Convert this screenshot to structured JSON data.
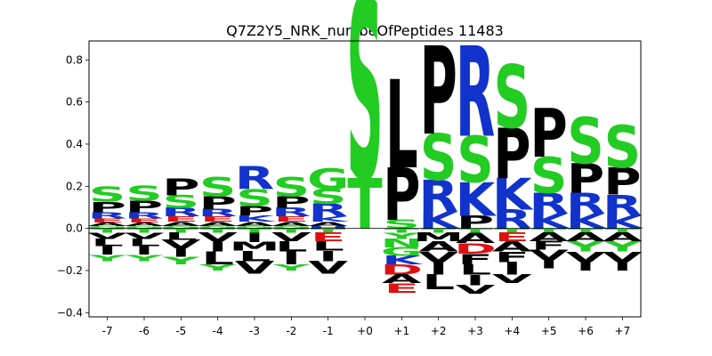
{
  "chart_data": {
    "type": "sequence-logo",
    "title": "Q7Z2Y5_NRK_numbeOfPeptides 11483",
    "xlabel": "",
    "ylabel": "",
    "ylim": [
      -0.42,
      0.89
    ],
    "yticks": [
      -0.4,
      -0.2,
      0.0,
      0.2,
      0.4,
      0.6,
      0.8
    ],
    "ytick_labels": [
      "−0.4",
      "−0.2",
      "0.0",
      "0.2",
      "0.4",
      "0.6",
      "0.8"
    ],
    "positions": [
      "-7",
      "-6",
      "-5",
      "-4",
      "-3",
      "-2",
      "-1",
      "+0",
      "+1",
      "+2",
      "+3",
      "+4",
      "+5",
      "+6",
      "+7"
    ],
    "grid": false,
    "legend": "none",
    "colors": {
      "S": "#22cc22",
      "T": "#22cc22",
      "G": "#22cc22",
      "C": "#22cc22",
      "Y": "#22cc22",
      "N": "#22cc22",
      "Q": "#22cc22",
      "P": "#000000",
      "L": "#000000",
      "V": "#000000",
      "I": "#000000",
      "A": "#000000",
      "M": "#000000",
      "F": "#000000",
      "W": "#000000",
      "R": "#1133cc",
      "K": "#1133cc",
      "H": "#1133cc",
      "D": "#dd1111",
      "E": "#dd1111",
      "zero_line": "#000000"
    },
    "columns": [
      {
        "position": "-7",
        "pos": [
          [
            "S",
            0.07
          ],
          [
            "P",
            0.05
          ],
          [
            "R",
            0.03
          ],
          [
            "E",
            0.02
          ],
          [
            "A",
            0.015
          ],
          [
            "G",
            0.012
          ]
        ],
        "neg": [
          [
            "T",
            0.02
          ],
          [
            "V",
            0.03
          ],
          [
            "L",
            0.035
          ],
          [
            "I",
            0.04
          ],
          [
            "Y",
            0.03
          ]
        ]
      },
      {
        "position": "-6",
        "pos": [
          [
            "S",
            0.07
          ],
          [
            "P",
            0.055
          ],
          [
            "R",
            0.03
          ],
          [
            "E",
            0.02
          ],
          [
            "A",
            0.015
          ],
          [
            "G",
            0.012
          ]
        ],
        "neg": [
          [
            "T",
            0.02
          ],
          [
            "V",
            0.03
          ],
          [
            "L",
            0.035
          ],
          [
            "I",
            0.04
          ],
          [
            "Y",
            0.03
          ]
        ]
      },
      {
        "position": "-5",
        "pos": [
          [
            "P",
            0.08
          ],
          [
            "S",
            0.06
          ],
          [
            "R",
            0.04
          ],
          [
            "E",
            0.025
          ],
          [
            "A",
            0.02
          ],
          [
            "G",
            0.012
          ]
        ],
        "neg": [
          [
            "T",
            0.02
          ],
          [
            "L",
            0.035
          ],
          [
            "V",
            0.04
          ],
          [
            "I",
            0.04
          ],
          [
            "Y",
            0.035
          ]
        ]
      },
      {
        "position": "-4",
        "pos": [
          [
            "S",
            0.09
          ],
          [
            "P",
            0.06
          ],
          [
            "R",
            0.035
          ],
          [
            "E",
            0.025
          ],
          [
            "A",
            0.02
          ],
          [
            "G",
            0.012
          ]
        ],
        "neg": [
          [
            "T",
            0.02
          ],
          [
            "V",
            0.04
          ],
          [
            "I",
            0.05
          ],
          [
            "L",
            0.06
          ],
          [
            "Y",
            0.03
          ]
        ]
      },
      {
        "position": "-3",
        "pos": [
          [
            "R",
            0.11
          ],
          [
            "S",
            0.08
          ],
          [
            "P",
            0.045
          ],
          [
            "K",
            0.03
          ],
          [
            "A",
            0.02
          ],
          [
            "G",
            0.012
          ]
        ],
        "neg": [
          [
            "T",
            0.02
          ],
          [
            "I",
            0.045
          ],
          [
            "M",
            0.04
          ],
          [
            "L",
            0.05
          ],
          [
            "V",
            0.06
          ]
        ]
      },
      {
        "position": "-2",
        "pos": [
          [
            "S",
            0.09
          ],
          [
            "P",
            0.055
          ],
          [
            "R",
            0.04
          ],
          [
            "E",
            0.025
          ],
          [
            "A",
            0.02
          ],
          [
            "G",
            0.012
          ]
        ],
        "neg": [
          [
            "T",
            0.02
          ],
          [
            "V",
            0.04
          ],
          [
            "L",
            0.05
          ],
          [
            "I",
            0.06
          ],
          [
            "Y",
            0.03
          ]
        ]
      },
      {
        "position": "-1",
        "pos": [
          [
            "G",
            0.1
          ],
          [
            "S",
            0.07
          ],
          [
            "R",
            0.06
          ],
          [
            "K",
            0.025
          ],
          [
            "A",
            0.02
          ],
          [
            "H",
            0.012
          ]
        ],
        "neg": [
          [
            "T",
            0.02
          ],
          [
            "E",
            0.04
          ],
          [
            "L",
            0.045
          ],
          [
            "I",
            0.05
          ],
          [
            "V",
            0.06
          ]
        ]
      },
      {
        "position": "+0",
        "pos": [
          [
            "S",
            0.86
          ],
          [
            "T",
            0.24
          ]
        ],
        "neg": []
      },
      {
        "position": "+1",
        "pos": [
          [
            "L",
            0.42
          ],
          [
            "P",
            0.25
          ],
          [
            "S",
            0.04
          ]
        ],
        "neg": [
          [
            "T",
            0.02
          ],
          [
            "Y",
            0.03
          ],
          [
            "N",
            0.04
          ],
          [
            "G",
            0.04
          ],
          [
            "K",
            0.04
          ],
          [
            "D",
            0.05
          ],
          [
            "A",
            0.04
          ],
          [
            "E",
            0.045
          ]
        ]
      },
      {
        "position": "+2",
        "pos": [
          [
            "P",
            0.42
          ],
          [
            "S",
            0.22
          ],
          [
            "R",
            0.15
          ],
          [
            "K",
            0.08
          ]
        ],
        "neg": [
          [
            "T",
            0.02
          ],
          [
            "M",
            0.04
          ],
          [
            "A",
            0.05
          ],
          [
            "V",
            0.05
          ],
          [
            "I",
            0.06
          ],
          [
            "L",
            0.07
          ]
        ]
      },
      {
        "position": "+3",
        "pos": [
          [
            "R",
            0.43
          ],
          [
            "S",
            0.22
          ],
          [
            "K",
            0.16
          ],
          [
            "P",
            0.06
          ]
        ],
        "neg": [
          [
            "T",
            0.02
          ],
          [
            "A",
            0.05
          ],
          [
            "D",
            0.05
          ],
          [
            "F",
            0.05
          ],
          [
            "L",
            0.05
          ],
          [
            "I",
            0.05
          ],
          [
            "V",
            0.04
          ]
        ]
      },
      {
        "position": "+4",
        "pos": [
          [
            "S",
            0.3
          ],
          [
            "P",
            0.24
          ],
          [
            "K",
            0.15
          ],
          [
            "R",
            0.09
          ]
        ],
        "neg": [
          [
            "T",
            0.02
          ],
          [
            "E",
            0.04
          ],
          [
            "A",
            0.05
          ],
          [
            "F",
            0.05
          ],
          [
            "I",
            0.06
          ],
          [
            "V",
            0.04
          ]
        ]
      },
      {
        "position": "+5",
        "pos": [
          [
            "P",
            0.23
          ],
          [
            "S",
            0.17
          ],
          [
            "R",
            0.1
          ],
          [
            "K",
            0.07
          ]
        ],
        "neg": [
          [
            "T",
            0.02
          ],
          [
            "A",
            0.04
          ],
          [
            "F",
            0.04
          ],
          [
            "V",
            0.05
          ],
          [
            "I",
            0.04
          ]
        ]
      },
      {
        "position": "+6",
        "pos": [
          [
            "S",
            0.22
          ],
          [
            "P",
            0.14
          ],
          [
            "R",
            0.1
          ],
          [
            "K",
            0.07
          ]
        ],
        "neg": [
          [
            "T",
            0.02
          ],
          [
            "A",
            0.04
          ],
          [
            "Y",
            0.05
          ],
          [
            "V",
            0.05
          ],
          [
            "I",
            0.04
          ]
        ]
      },
      {
        "position": "+7",
        "pos": [
          [
            "S",
            0.2
          ],
          [
            "P",
            0.13
          ],
          [
            "R",
            0.1
          ],
          [
            "K",
            0.06
          ]
        ],
        "neg": [
          [
            "T",
            0.02
          ],
          [
            "A",
            0.04
          ],
          [
            "Y",
            0.05
          ],
          [
            "V",
            0.05
          ],
          [
            "I",
            0.04
          ]
        ]
      }
    ]
  }
}
